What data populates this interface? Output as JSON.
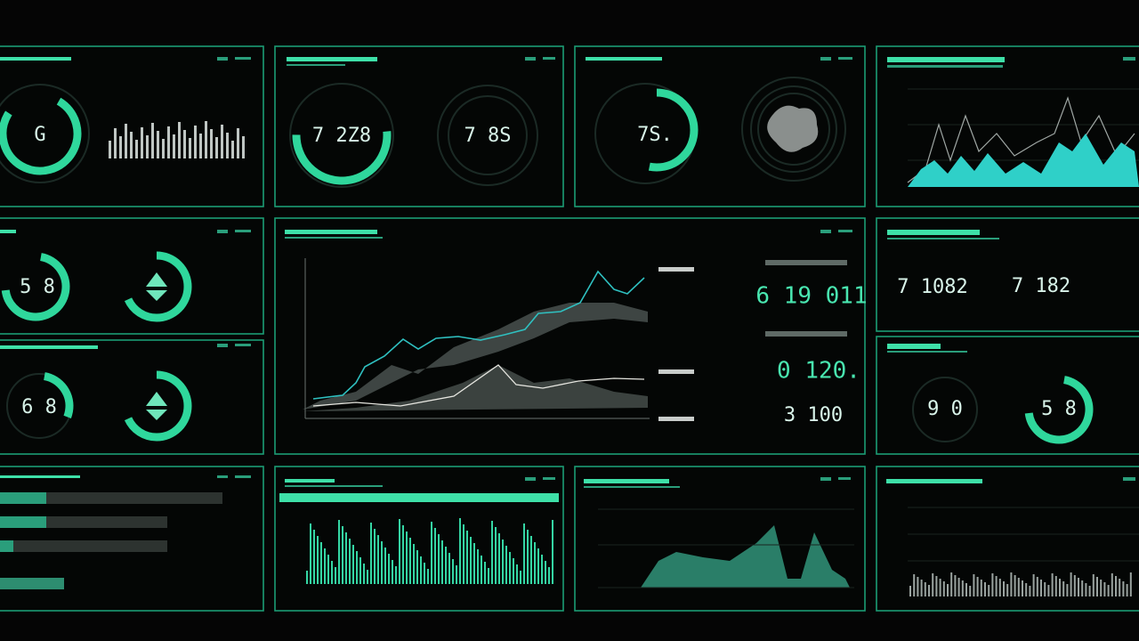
{
  "top_row": {
    "gauge_1": "G",
    "gauge_2": "7 2Z8",
    "gauge_3": "7 8S",
    "gauge_4": "7S."
  },
  "middle_left": {
    "gauge_1": "5 8",
    "gauge_2": "6 8"
  },
  "center": {
    "stat_1": "6 19 011",
    "stat_2": "0 120.",
    "stat_3": "3 100"
  },
  "middle_right": {
    "stat_1": "7 1082",
    "stat_2": "7 182",
    "gauge_1": "9 0",
    "gauge_2": "5 8"
  }
}
